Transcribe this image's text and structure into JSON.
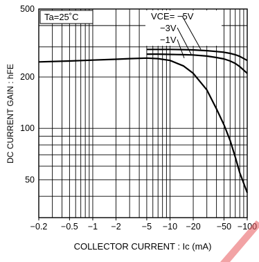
{
  "chart_data": {
    "type": "line",
    "xlabel": "COLLECTOR CURRENT : Ic (mA)",
    "ylabel": "DC CURRENT GAIN : hFE",
    "x_scale": "log",
    "y_scale": "log",
    "xlim": [
      -0.2,
      -100
    ],
    "ylim": [
      30,
      500
    ],
    "grid": true,
    "x_ticks": [
      -0.2,
      -0.5,
      -1,
      -2,
      -5,
      -10,
      -20,
      -50,
      -100
    ],
    "x_tick_labels": [
      "−0.2",
      "−0.5",
      "−1",
      "−2",
      "−5",
      "−10",
      "−20",
      "−50",
      "−100"
    ],
    "y_ticks": [
      50,
      100,
      200,
      500
    ],
    "y_tick_labels": [
      "50",
      "100",
      "200",
      "500"
    ],
    "annotations": [
      {
        "id": "ta",
        "text": "Ta=25˚C"
      },
      {
        "id": "vce5",
        "text": "VCE= −5V"
      },
      {
        "id": "vce3",
        "text": "−3V"
      },
      {
        "id": "vce1",
        "text": "−1V"
      }
    ],
    "series": [
      {
        "label": "−1V",
        "x": [
          -0.2,
          -0.5,
          -1,
          -2,
          -3,
          -5,
          -7,
          -10,
          -15,
          -20,
          -30,
          -40,
          -50,
          -60,
          -70,
          -80,
          -100
        ],
        "y": [
          245,
          248,
          251,
          254,
          256,
          258,
          256,
          250,
          232,
          210,
          168,
          130,
          105,
          85,
          68,
          55,
          42
        ]
      },
      {
        "label": "−3V",
        "x": [
          -5,
          -7,
          -10,
          -15,
          -20,
          -30,
          -40,
          -50,
          -60,
          -70,
          -80,
          -100
        ],
        "y": [
          272,
          272,
          271,
          270,
          269,
          265,
          260,
          255,
          248,
          240,
          230,
          210
        ]
      },
      {
        "label": "−5V",
        "x": [
          -5,
          -7,
          -10,
          -15,
          -20,
          -30,
          -40,
          -50,
          -60,
          -70,
          -80,
          -100
        ],
        "y": [
          290,
          290,
          290,
          289,
          288,
          285,
          282,
          279,
          275,
          270,
          264,
          250
        ]
      }
    ]
  }
}
